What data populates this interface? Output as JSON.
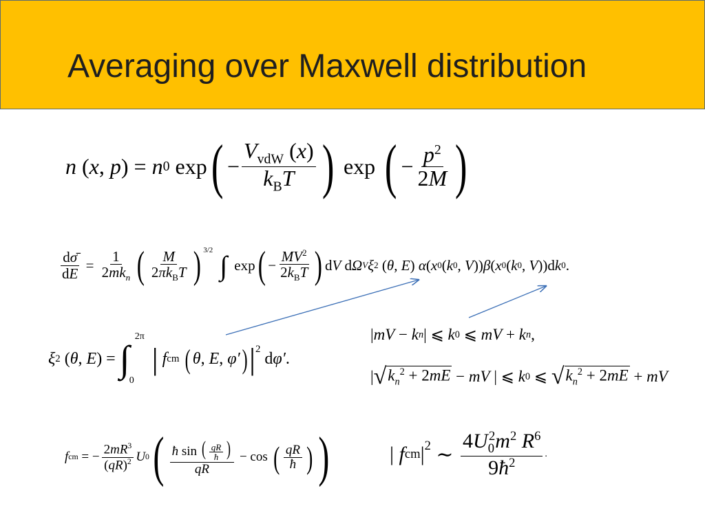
{
  "slide": {
    "title": "Averaging over Maxwell distribution",
    "accent_color": "#ffc000",
    "arrow_color": "#3b6fb6"
  },
  "equations": {
    "maxwell": "n (x, p) = n0 exp(−VvdW(x)/kBT) exp(−p²/2M)",
    "cross_section": "dσ̄/dE = 1/(2mkn) (M/(2πkBT))^(3/2) ∫ exp(−MV²/(2kBT)) dV dΩV ξ²(θ, E) α(x0(k0, V))β(x0(k0, V))dk0.",
    "xi": "ξ²(θ, E) = ∫0^2π |fcm(θ, E, φ′)|² dφ′.",
    "k0_bound_1": "|mV − kn| ⩽ k0 ⩽ mV + kn,",
    "k0_bound_2": "|√(kn² + 2mE) − mV| ⩽ k0 ⩽ √(kn² + 2mE) + mV",
    "fcm": "fcm = −2mR³/(qR)² U0 (ħ sin(qR/ħ)/(qR) − cos(qR/ħ))",
    "fcm_sq": "|fcm|² ∼ 4U0²m²R⁶/(9ħ²)."
  }
}
